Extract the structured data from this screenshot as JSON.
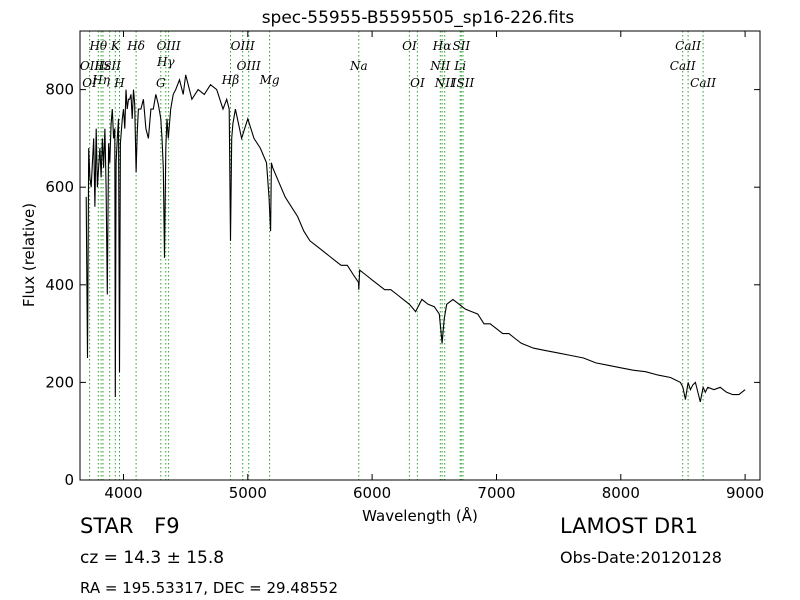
{
  "chart_data": {
    "type": "line",
    "title": "spec-55955-B5595505_sp16-226.fits",
    "xlabel": "Wavelength (Å)",
    "ylabel": "Flux (relative)",
    "xlim": [
      3650,
      9120
    ],
    "ylim": [
      0,
      920
    ],
    "xticks": [
      "4000",
      "5000",
      "6000",
      "7000",
      "8000",
      "9000"
    ],
    "yticks": [
      "0",
      "200",
      "400",
      "600",
      "800"
    ],
    "grid": false,
    "line_color": "#000000",
    "marker_color": "#2ca02c",
    "series": [
      {
        "x": [
          3700,
          3710,
          3720,
          3730,
          3740,
          3750,
          3760,
          3770,
          3780,
          3790,
          3800,
          3810,
          3820,
          3830,
          3840,
          3850,
          3860,
          3870,
          3880,
          3890,
          3900,
          3910,
          3920,
          3930,
          3934,
          3940,
          3950,
          3960,
          3968,
          3975,
          3990,
          4000,
          4010,
          4020,
          4030,
          4040,
          4050,
          4060,
          4070,
          4080,
          4090,
          4101,
          4110,
          4120,
          4140,
          4160,
          4180,
          4200,
          4220,
          4240,
          4260,
          4280,
          4300,
          4310,
          4320,
          4330,
          4340,
          4350,
          4360,
          4380,
          4400,
          4420,
          4450,
          4480,
          4500,
          4550,
          4600,
          4650,
          4700,
          4750,
          4800,
          4830,
          4850,
          4861,
          4870,
          4880,
          4900,
          4950,
          5000,
          5050,
          5100,
          5150,
          5170,
          5183,
          5190,
          5200,
          5250,
          5300,
          5350,
          5400,
          5450,
          5500,
          5550,
          5600,
          5650,
          5700,
          5750,
          5800,
          5850,
          5890,
          5893,
          5900,
          5950,
          6000,
          6050,
          6100,
          6150,
          6200,
          6250,
          6300,
          6350,
          6400,
          6450,
          6500,
          6540,
          6563,
          6580,
          6600,
          6650,
          6700,
          6750,
          6800,
          6850,
          6900,
          6950,
          7000,
          7050,
          7100,
          7150,
          7200,
          7300,
          7400,
          7500,
          7600,
          7700,
          7800,
          7900,
          8000,
          8100,
          8200,
          8300,
          8400,
          8480,
          8500,
          8520,
          8542,
          8560,
          8580,
          8600,
          8640,
          8662,
          8680,
          8700,
          8750,
          8800,
          8850,
          8900,
          8950,
          9000
        ],
        "y": [
          580,
          250,
          680,
          620,
          600,
          650,
          700,
          560,
          720,
          600,
          640,
          680,
          620,
          700,
          640,
          720,
          600,
          380,
          690,
          650,
          730,
          760,
          700,
          720,
          170,
          650,
          700,
          740,
          220,
          690,
          740,
          760,
          720,
          800,
          760,
          780,
          780,
          790,
          740,
          800,
          770,
          630,
          710,
          760,
          760,
          780,
          720,
          700,
          760,
          760,
          790,
          770,
          740,
          700,
          640,
          455,
          680,
          740,
          700,
          760,
          790,
          800,
          820,
          790,
          830,
          780,
          800,
          790,
          810,
          800,
          760,
          780,
          760,
          490,
          700,
          730,
          760,
          700,
          740,
          700,
          680,
          650,
          580,
          510,
          650,
          640,
          610,
          580,
          560,
          540,
          510,
          490,
          480,
          470,
          460,
          450,
          440,
          440,
          420,
          405,
          390,
          430,
          420,
          410,
          400,
          390,
          390,
          380,
          370,
          360,
          345,
          370,
          360,
          355,
          340,
          280,
          330,
          360,
          370,
          360,
          350,
          345,
          340,
          320,
          320,
          310,
          300,
          300,
          290,
          280,
          270,
          265,
          260,
          255,
          250,
          240,
          235,
          230,
          225,
          222,
          215,
          210,
          200,
          190,
          165,
          200,
          185,
          195,
          200,
          160,
          190,
          180,
          190,
          185,
          190,
          180,
          175,
          175,
          185
        ]
      }
    ],
    "annotations": [
      {
        "label": "Hθ",
        "x": 3797,
        "row": 1
      },
      {
        "label": "K",
        "x": 3934,
        "row": 1
      },
      {
        "label": "Hδ",
        "x": 4101,
        "row": 1
      },
      {
        "label": "OIII",
        "x": 4363,
        "row": 1
      },
      {
        "label": "OIII",
        "x": 4959,
        "row": 1
      },
      {
        "label": "OI",
        "x": 6300,
        "row": 1
      },
      {
        "label": "Hα",
        "x": 6563,
        "row": 1
      },
      {
        "label": "SII",
        "x": 6717,
        "row": 1
      },
      {
        "label": "CaII",
        "x": 8542,
        "row": 1
      },
      {
        "label": "Hγ",
        "x": 4340,
        "row": 2
      },
      {
        "label": "OII",
        "x": 3727,
        "row": 3
      },
      {
        "label": "Hε",
        "x": 3835,
        "row": 3
      },
      {
        "label": "ISII",
        "x": 3889,
        "row": 3
      },
      {
        "label": "OIII",
        "x": 5007,
        "row": 3
      },
      {
        "label": "Na",
        "x": 5893,
        "row": 3
      },
      {
        "label": "NII",
        "x": 6548,
        "row": 3
      },
      {
        "label": "Li",
        "x": 6708,
        "row": 3
      },
      {
        "label": "CaII",
        "x": 8498,
        "row": 3
      },
      {
        "label": "Hη",
        "x": 3820,
        "row": 4
      },
      {
        "label": "Hβ",
        "x": 4861,
        "row": 4
      },
      {
        "label": "Mg",
        "x": 5175,
        "row": 4
      },
      {
        "label": "OI",
        "x": 3727,
        "row": 5
      },
      {
        "label": "H",
        "x": 3968,
        "row": 5
      },
      {
        "label": "G",
        "x": 4300,
        "row": 5
      },
      {
        "label": "OI",
        "x": 6364,
        "row": 5
      },
      {
        "label": "NII",
        "x": 6584,
        "row": 5
      },
      {
        "label": "ISII",
        "x": 6731,
        "row": 5
      },
      {
        "label": "CaII",
        "x": 8662,
        "row": 5
      }
    ],
    "line_marks": [
      3727,
      3797,
      3820,
      3835,
      3889,
      3934,
      3968,
      4101,
      4300,
      4340,
      4363,
      4861,
      4959,
      5007,
      5175,
      5893,
      6300,
      6364,
      6548,
      6563,
      6584,
      6708,
      6717,
      6731,
      8498,
      8542,
      8662
    ]
  },
  "info": {
    "class_label": "STAR",
    "subclass": "F9",
    "redshift": "cz = 14.3 ± 15.8",
    "coordinates": "RA = 195.53317, DEC = 29.48552",
    "survey": "LAMOST DR1",
    "obs_date": "Obs-Date:20120128"
  }
}
